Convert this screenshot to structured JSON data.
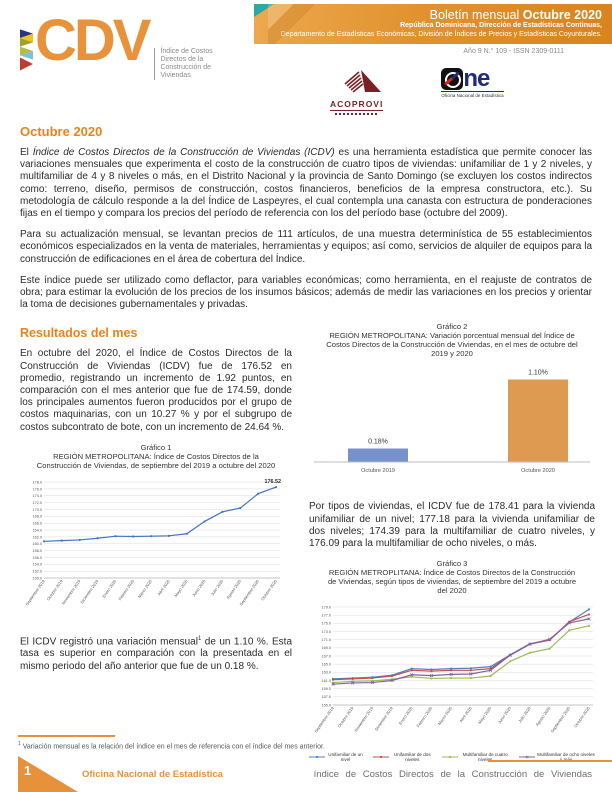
{
  "colors": {
    "accent_orange": "#E8913B",
    "heading_orange": "#F08119",
    "banner_teal": "#2EA8A4",
    "acoprovi_maroon": "#7A1F24",
    "one_blue": "#1F2B7B",
    "line_blue": "#4472C4",
    "bar_blue": "#7691CB",
    "bar_orange": "#DF9A52"
  },
  "header": {
    "logo": {
      "word": "CDV",
      "tagline_lines": [
        "Índice de Costos",
        "Directos de la",
        "Construcción de",
        "Viviendas"
      ]
    },
    "banner": {
      "title_light": "Boletín mensual ",
      "title_bold": "Octubre 2020",
      "line2": "República Dominicana, Dirección de Estadísticas Continuas,",
      "line3": "Departamento de Estadísticas Económicas, División de Índices de Precios y Estadísticas Coyunturales."
    },
    "issue": "Año 9 N.° 109 - ISSN 2309-0111",
    "acoprovi_name": "ACOPROVI",
    "one_word": "ne",
    "one_sub": "Oficina Nacional de Estadística"
  },
  "intro": {
    "section_title": "Octubre 2020",
    "p1_prefix": "El ",
    "p1_italic": "Índice de Costos Directos de la Construcción de Viviendas (ICDV)",
    "p1_rest": " es una herramienta estadística que permite conocer las variaciones mensuales que experimenta el costo de la construcción de cuatro tipos de viviendas: unifamiliar de 1 y 2 niveles, y multifamiliar de 4 y 8 niveles o más, en el Distrito Nacional y la provincia de Santo Domingo (se excluyen los costos indirectos como: terreno, diseño, permisos de construcción, costos financieros, beneficios de la empresa constructora, etc.). Su metodología de cálculo responde a la del Índice de Laspeyres, el cual contempla una canasta con estructura de ponderaciones fijas en el tiempo y compara los precios del período de referencia con los del período base (octubre del 2009).",
    "p2": "Para su actualización mensual, se levantan precios de 111 artículos, de una muestra determinística de 55 establecimientos económicos especializados en la venta de materiales, herramientas y equipos; así como, servicios de alquiler de equipos para la construcción de edificaciones en el área de cobertura del Índice.",
    "p3": "Este índice puede ser utilizado como deflactor, para variables económicas; como herramienta, en el reajuste de contratos de obra; para estimar la evolución de los precios de los insumos básicos; además de medir las variaciones en los precios y orientar la toma de decisiones gubernamentales y privadas."
  },
  "results": {
    "title": "Resultados del mes",
    "p4": "En octubre del 2020, el Índice de Costos Directos de la Construcción de Viviendas (ICDV) fue de 176.52 en promedio, registrando un incremento de 1.92 puntos, en comparación con el mes anterior que fue de 174.59, donde los principales aumentos fueron producidos por el grupo de costos maquinarias, con un 10.27 % y por el subgrupo de costos subcontrato de bote, con un incremento de 24.64 %.",
    "p5_a": "El ICDV registró una variación mensual",
    "p5_sup": "1",
    "p5_b": " de un 1.10 %. Esta tasa es superior en comparación con la presentada en el mismo periodo del año anterior que fue de un 0.18 %.",
    "p6": "Por tipos de viviendas, el ICDV fue de 178.41 para la vivienda unifamiliar de un nivel; 177.18 para la vivienda unifamiliar de dos niveles; 174.39 para la multifamiliar de cuatro niveles, y 176.09 para la multifamiliar de ocho niveles, o más."
  },
  "chart_data": [
    {
      "id": "grafico1",
      "type": "line",
      "title_label": "Gráfico 1",
      "title": "REGIÓN METROPOLITANA: Índice de Costos Directos de la Construcción de Viviendas, de septiembre del 2019 a octubre del 2020",
      "x": [
        "Septiembre 2019",
        "Octubre 2019",
        "Noviembre 2019",
        "Diciembre 2019",
        "Enero 2020",
        "Febrero 2020",
        "Marzo 2020",
        "Abril 2020",
        "Mayo 2020",
        "Junio 2020",
        "Julio 2020",
        "Agosto 2020",
        "Septiembre 2020",
        "Octubre 2020"
      ],
      "series": [
        {
          "name": "ICDV",
          "color": "#4472C4",
          "values": [
            160.7,
            160.9,
            161.1,
            161.6,
            162.2,
            162.1,
            162.2,
            162.3,
            162.9,
            166.5,
            169.3,
            170.4,
            174.59,
            176.52
          ]
        }
      ],
      "ylim": [
        150,
        178
      ],
      "ytick_step": 2,
      "annotation": "176.52",
      "grid": true,
      "legend": false
    },
    {
      "id": "grafico2",
      "type": "bar",
      "title_label": "Gráfico 2",
      "title": "REGIÓN METROPOLITANA: Variación porcentual mensual del Índice de Costos Directos de la Construcción de Viviendas, en el mes de octubre del 2019 y 2020",
      "categories": [
        "Octubre 2019",
        "Octubre 2020"
      ],
      "values": [
        0.18,
        1.1
      ],
      "labels": [
        "0.18%",
        "1.10%"
      ],
      "colors": [
        "#7691CB",
        "#DF9A52"
      ],
      "ylim": [
        0,
        1.2
      ],
      "grid": false,
      "legend": false
    },
    {
      "id": "grafico3",
      "type": "line",
      "title_label": "Gráfico 3",
      "title": "REGIÓN METROPLITANA: Índice de Costos Directos de la Construcción de Viviendas, según tipos de viviendas, de septiembre del 2019 a octubre del 2020",
      "x": [
        "Septiembre 2019",
        "Octubre 2019",
        "Noviembre 2019",
        "Diciembre 2019",
        "Enero 2020",
        "Febrero 2020",
        "Marzo 2020",
        "Abril 2020",
        "Mayo 2020",
        "Junio 2020",
        "Julio 2020",
        "Agosto 2020",
        "Septiembre 2020",
        "Octubre 2020"
      ],
      "series": [
        {
          "name": "Unifamiliar de un nivel",
          "color": "#4F81BD",
          "marker": "circle",
          "values": [
            161.4,
            161.6,
            161.8,
            162.3,
            163.9,
            163.7,
            163.9,
            164.0,
            164.4,
            167.3,
            170.0,
            170.9,
            175.3,
            178.41
          ]
        },
        {
          "name": "Unifamiliar de dos niveles",
          "color": "#C0504D",
          "marker": "circle",
          "values": [
            161.2,
            161.4,
            161.6,
            162.1,
            163.5,
            163.3,
            163.5,
            163.5,
            163.9,
            167.2,
            169.9,
            170.9,
            175.4,
            177.18
          ]
        },
        {
          "name": "Multifamiliar de cuatro niveles",
          "color": "#9BBB59",
          "marker": "circle",
          "values": [
            160.5,
            160.8,
            160.9,
            161.3,
            161.9,
            161.5,
            161.6,
            161.6,
            162.1,
            165.7,
            167.8,
            168.8,
            173.3,
            174.39
          ]
        },
        {
          "name": "Multifamiliar de ocho niveles o más",
          "color": "#8064A2",
          "marker": "x",
          "values": [
            160.1,
            160.4,
            160.5,
            161.0,
            162.4,
            162.2,
            162.5,
            162.6,
            163.5,
            167.2,
            169.9,
            171.1,
            175.1,
            176.09
          ]
        }
      ],
      "ylim": [
        155,
        179
      ],
      "ytick_step": 2,
      "grid": true,
      "legend": true
    }
  ],
  "footnote": {
    "num": "1",
    "text": "Variación mensual es la relación del índice en el mes de referencia con el índice del mes anterior."
  },
  "footer": {
    "page": "1",
    "left": "Oficina Nacional de Estadística",
    "right": "índice  de  Costos  Directos  de  la  Construcción  de  Viviendas"
  }
}
